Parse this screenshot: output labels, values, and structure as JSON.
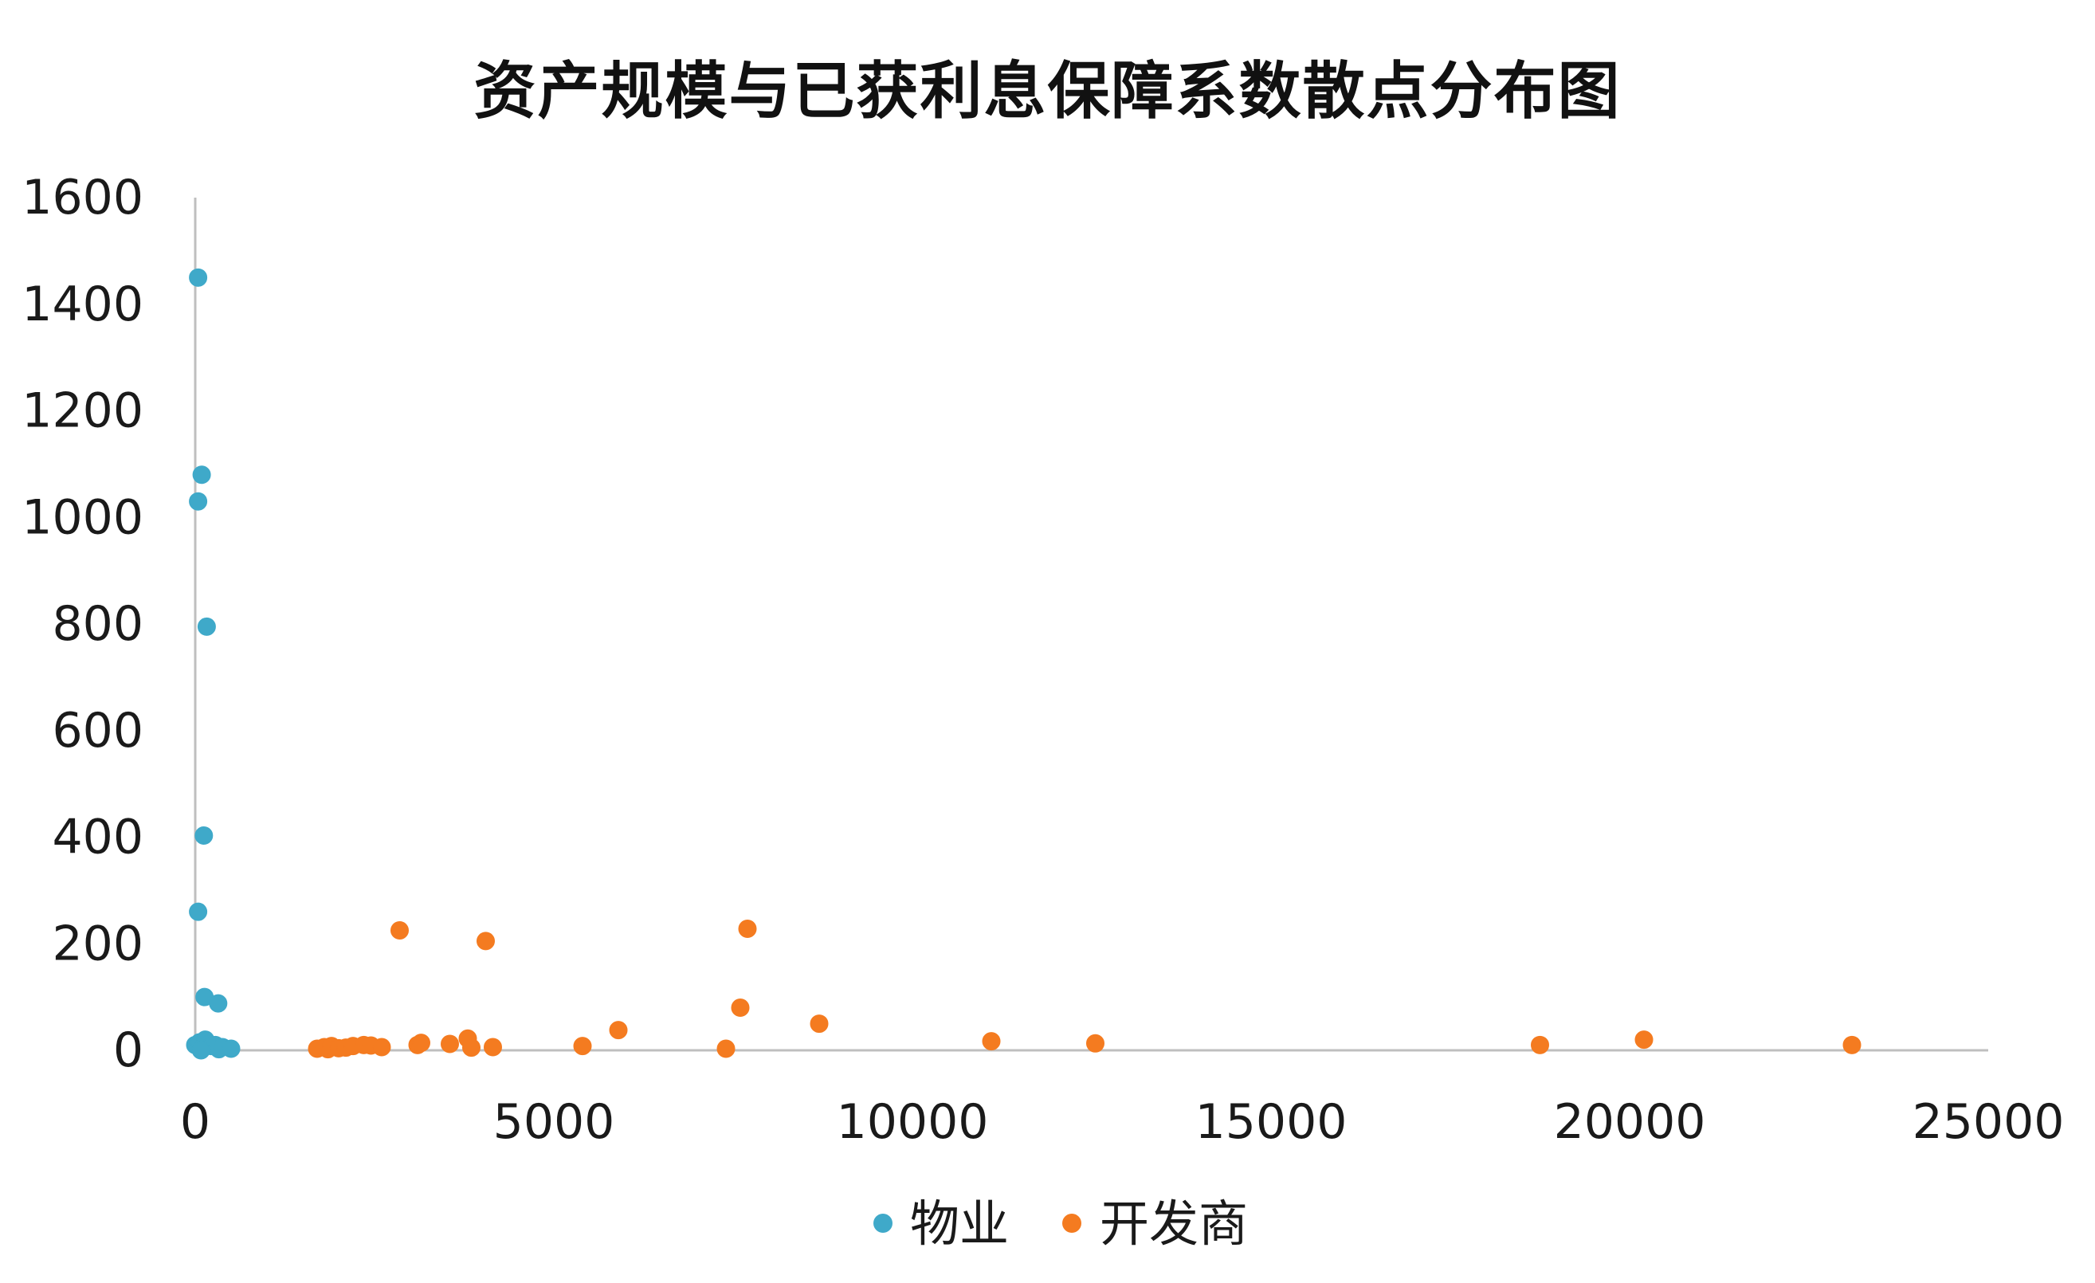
{
  "chart_data": {
    "type": "scatter",
    "title": "资产规模与已获利息保障系数散点分布图",
    "xlabel": "",
    "ylabel": "",
    "xlim": [
      0,
      25000
    ],
    "ylim": [
      0,
      1600
    ],
    "x_ticks": [
      0,
      5000,
      10000,
      15000,
      20000,
      25000
    ],
    "y_ticks": [
      0,
      200,
      400,
      600,
      800,
      1000,
      1200,
      1400,
      1600
    ],
    "x_tick_labels": [
      "0",
      "5000",
      "10000",
      "15000",
      "20000",
      "25000"
    ],
    "y_tick_labels": [
      "0",
      "200",
      "400",
      "600",
      "800",
      "1000",
      "1200",
      "1400",
      "1600"
    ],
    "grid": false,
    "legend_position": "bottom",
    "series": [
      {
        "name": "物业",
        "color": "#3FA9C9",
        "points": [
          {
            "x": 40,
            "y": 1450
          },
          {
            "x": 90,
            "y": 1080
          },
          {
            "x": 40,
            "y": 1030
          },
          {
            "x": 160,
            "y": 795
          },
          {
            "x": 120,
            "y": 403
          },
          {
            "x": 40,
            "y": 260
          },
          {
            "x": 130,
            "y": 100
          },
          {
            "x": 320,
            "y": 88
          },
          {
            "x": 0,
            "y": 10
          },
          {
            "x": 60,
            "y": 15
          },
          {
            "x": 100,
            "y": 5
          },
          {
            "x": 140,
            "y": 20
          },
          {
            "x": 180,
            "y": 12
          },
          {
            "x": 220,
            "y": 8
          },
          {
            "x": 280,
            "y": 10
          },
          {
            "x": 330,
            "y": 2
          },
          {
            "x": 380,
            "y": 6
          },
          {
            "x": 500,
            "y": 3
          },
          {
            "x": 80,
            "y": 0
          }
        ]
      },
      {
        "name": "开发商",
        "color": "#F47B20",
        "points": [
          {
            "x": 1700,
            "y": 3
          },
          {
            "x": 1800,
            "y": 6
          },
          {
            "x": 1850,
            "y": 2
          },
          {
            "x": 1900,
            "y": 8
          },
          {
            "x": 2000,
            "y": 4
          },
          {
            "x": 2100,
            "y": 5
          },
          {
            "x": 2200,
            "y": 8
          },
          {
            "x": 2350,
            "y": 10
          },
          {
            "x": 2450,
            "y": 9
          },
          {
            "x": 2600,
            "y": 6
          },
          {
            "x": 2850,
            "y": 225
          },
          {
            "x": 3100,
            "y": 10
          },
          {
            "x": 3150,
            "y": 14
          },
          {
            "x": 3550,
            "y": 12
          },
          {
            "x": 3800,
            "y": 22
          },
          {
            "x": 3850,
            "y": 5
          },
          {
            "x": 4050,
            "y": 205
          },
          {
            "x": 4150,
            "y": 6
          },
          {
            "x": 5400,
            "y": 8
          },
          {
            "x": 5900,
            "y": 38
          },
          {
            "x": 7400,
            "y": 3
          },
          {
            "x": 7600,
            "y": 80
          },
          {
            "x": 7700,
            "y": 228
          },
          {
            "x": 8700,
            "y": 50
          },
          {
            "x": 11100,
            "y": 17
          },
          {
            "x": 12550,
            "y": 13
          },
          {
            "x": 18750,
            "y": 10
          },
          {
            "x": 20200,
            "y": 20
          },
          {
            "x": 23100,
            "y": 10
          }
        ]
      }
    ]
  }
}
